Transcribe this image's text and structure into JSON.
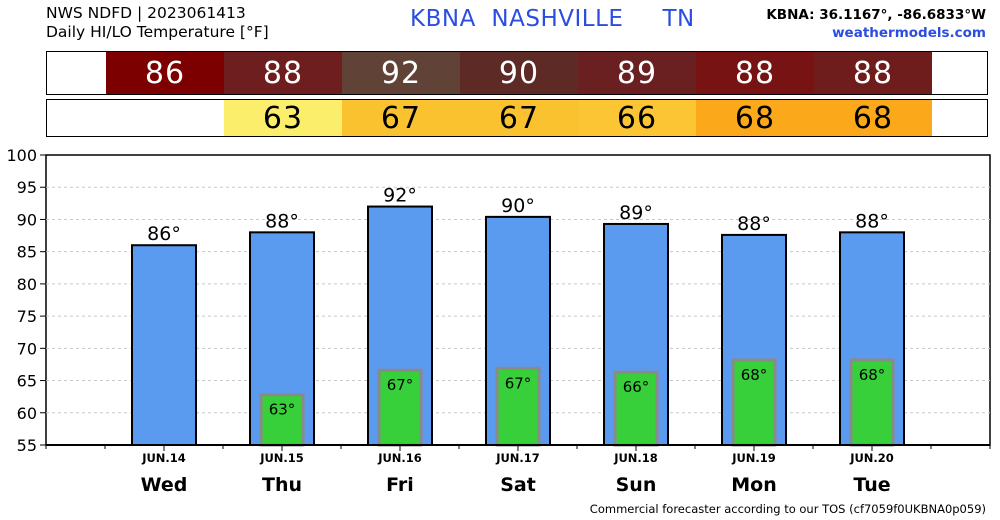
{
  "header": {
    "line1": "NWS NDFD | 2023061413",
    "line2": "Daily HI/LO Temperature [°F]",
    "title": "KBNA  NASHVILLE     TN",
    "coords": "KBNA: 36.1167°, -86.6833°W",
    "site": "weathermodels.com"
  },
  "footer": "Commercial forecaster according to our TOS (cf7059f0UKBNA0p059)",
  "colors": {
    "hi_bar": "#5b9bef",
    "lo_bar": "#37cf3a",
    "lo_bar_border": "#8a8a8a",
    "hi_cells": [
      "#7d0000",
      "#6e1e1e",
      "#604237",
      "#5e2a26",
      "#6a2020",
      "#771313",
      "#6e1c1c"
    ],
    "lo_cells": [
      null,
      "#fbee6a",
      "#fbc22f",
      "#fbc22f",
      "#fbc533",
      "#fba91b",
      "#fba91b"
    ]
  },
  "hi_strip": [
    "86",
    "88",
    "92",
    "90",
    "89",
    "88",
    "88"
  ],
  "lo_strip": [
    "",
    "63",
    "67",
    "67",
    "66",
    "68",
    "68"
  ],
  "chart_data": {
    "type": "bar",
    "categories": [
      "Wed",
      "Thu",
      "Fri",
      "Sat",
      "Sun",
      "Mon",
      "Tue"
    ],
    "dates": [
      "JUN.14",
      "JUN.15",
      "JUN.16",
      "JUN.17",
      "JUN.18",
      "JUN.19",
      "JUN.20"
    ],
    "series": [
      {
        "name": "HI",
        "values": [
          86,
          88,
          92,
          90.4,
          89.3,
          87.6,
          88
        ],
        "labels": [
          "86°",
          "88°",
          "92°",
          "90°",
          "89°",
          "88°",
          "88°"
        ]
      },
      {
        "name": "LO",
        "values": [
          null,
          62.8,
          66.6,
          66.9,
          66.3,
          68.2,
          68.2
        ],
        "labels": [
          "",
          "63°",
          "67°",
          "67°",
          "66°",
          "68°",
          "68°"
        ]
      }
    ],
    "ylim": [
      55,
      100
    ],
    "yticks": [
      "55",
      "60",
      "65",
      "70",
      "75",
      "80",
      "85",
      "90",
      "95",
      "100"
    ],
    "grid": true
  }
}
